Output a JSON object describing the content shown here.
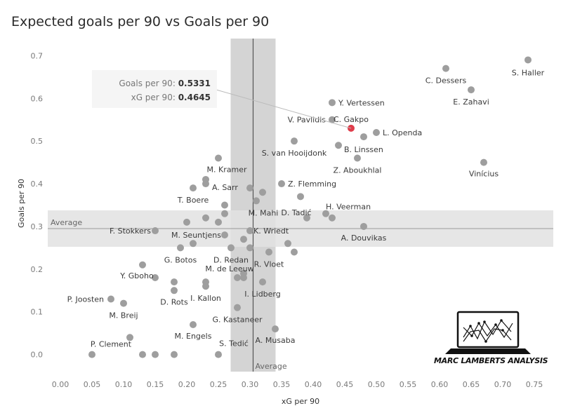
{
  "chart_data": {
    "type": "scatter",
    "title": "Expected goals per 90 vs Goals per 90",
    "xlabel": "xG per 90",
    "ylabel": "Goals per 90",
    "xlim": [
      -0.02,
      0.78
    ],
    "ylim": [
      -0.04,
      0.74
    ],
    "xticks": [
      "0.00",
      "0.05",
      "0.10",
      "0.15",
      "0.20",
      "0.25",
      "0.30",
      "0.35",
      "0.40",
      "0.45",
      "0.50",
      "0.55",
      "0.60",
      "0.65",
      "0.70",
      "0.75"
    ],
    "yticks": [
      "0.0",
      "0.1",
      "0.2",
      "0.3",
      "0.4",
      "0.5",
      "0.6",
      "0.7"
    ],
    "average_x": 0.305,
    "average_y": 0.295,
    "average_label": "Average",
    "highlight_color": "#e03c4a",
    "point_color": "#9e9e9e",
    "points": [
      {
        "x": 0.74,
        "y": 0.69,
        "label": "S. Haller"
      },
      {
        "x": 0.61,
        "y": 0.67,
        "label": "C. Dessers"
      },
      {
        "x": 0.65,
        "y": 0.62,
        "label": "E. Zahavi"
      },
      {
        "x": 0.43,
        "y": 0.59,
        "label": "Y. Vertessen"
      },
      {
        "x": 0.43,
        "y": 0.55,
        "label": "V. Pavlidis"
      },
      {
        "x": 0.46,
        "y": 0.53,
        "label": "C. Gakpo",
        "highlight": true
      },
      {
        "x": 0.5,
        "y": 0.52,
        "label": "L. Openda"
      },
      {
        "x": 0.48,
        "y": 0.51,
        "label": ""
      },
      {
        "x": 0.37,
        "y": 0.5,
        "label": "S. van Hooijdonk"
      },
      {
        "x": 0.44,
        "y": 0.49,
        "label": "B. Linssen"
      },
      {
        "x": 0.47,
        "y": 0.46,
        "label": "Z. Aboukhlal"
      },
      {
        "x": 0.67,
        "y": 0.45,
        "label": "Vinícius"
      },
      {
        "x": 0.25,
        "y": 0.46,
        "label": "M. Kramer"
      },
      {
        "x": 0.23,
        "y": 0.41,
        "label": ""
      },
      {
        "x": 0.23,
        "y": 0.4,
        "label": "A. Sarr"
      },
      {
        "x": 0.35,
        "y": 0.4,
        "label": "Z. Flemming"
      },
      {
        "x": 0.21,
        "y": 0.39,
        "label": "T. Boere"
      },
      {
        "x": 0.3,
        "y": 0.39,
        "label": ""
      },
      {
        "x": 0.32,
        "y": 0.38,
        "label": ""
      },
      {
        "x": 0.38,
        "y": 0.37,
        "label": ""
      },
      {
        "x": 0.31,
        "y": 0.36,
        "label": "M. Mahi"
      },
      {
        "x": 0.26,
        "y": 0.35,
        "label": ""
      },
      {
        "x": 0.26,
        "y": 0.33,
        "label": ""
      },
      {
        "x": 0.42,
        "y": 0.33,
        "label": "H. Veerman"
      },
      {
        "x": 0.39,
        "y": 0.32,
        "label": "D. Tadić"
      },
      {
        "x": 0.43,
        "y": 0.32,
        "label": ""
      },
      {
        "x": 0.23,
        "y": 0.32,
        "label": ""
      },
      {
        "x": 0.2,
        "y": 0.31,
        "label": ""
      },
      {
        "x": 0.25,
        "y": 0.31,
        "label": ""
      },
      {
        "x": 0.48,
        "y": 0.3,
        "label": "A. Douvikas"
      },
      {
        "x": 0.15,
        "y": 0.29,
        "label": "F. Stokkers"
      },
      {
        "x": 0.3,
        "y": 0.29,
        "label": "K. Wriedt"
      },
      {
        "x": 0.26,
        "y": 0.28,
        "label": "M. Seuntjens"
      },
      {
        "x": 0.29,
        "y": 0.27,
        "label": ""
      },
      {
        "x": 0.21,
        "y": 0.26,
        "label": ""
      },
      {
        "x": 0.36,
        "y": 0.26,
        "label": ""
      },
      {
        "x": 0.19,
        "y": 0.25,
        "label": "G. Botos"
      },
      {
        "x": 0.27,
        "y": 0.25,
        "label": "D. Redan"
      },
      {
        "x": 0.3,
        "y": 0.25,
        "label": ""
      },
      {
        "x": 0.33,
        "y": 0.24,
        "label": "R. Vloet"
      },
      {
        "x": 0.37,
        "y": 0.24,
        "label": ""
      },
      {
        "x": 0.13,
        "y": 0.21,
        "label": "Y. Gboho"
      },
      {
        "x": 0.29,
        "y": 0.19,
        "label": "M. de Leeuw"
      },
      {
        "x": 0.15,
        "y": 0.18,
        "label": ""
      },
      {
        "x": 0.28,
        "y": 0.18,
        "label": ""
      },
      {
        "x": 0.29,
        "y": 0.18,
        "label": ""
      },
      {
        "x": 0.18,
        "y": 0.17,
        "label": ""
      },
      {
        "x": 0.23,
        "y": 0.17,
        "label": ""
      },
      {
        "x": 0.32,
        "y": 0.17,
        "label": "I. Lidberg"
      },
      {
        "x": 0.23,
        "y": 0.16,
        "label": "I. Kallon"
      },
      {
        "x": 0.18,
        "y": 0.15,
        "label": "D. Rots"
      },
      {
        "x": 0.08,
        "y": 0.13,
        "label": "P. Joosten"
      },
      {
        "x": 0.1,
        "y": 0.12,
        "label": "M. Breij"
      },
      {
        "x": 0.28,
        "y": 0.11,
        "label": "G. Kastaneer"
      },
      {
        "x": 0.21,
        "y": 0.07,
        "label": "M. Engels"
      },
      {
        "x": 0.34,
        "y": 0.06,
        "label": "A. Musaba"
      },
      {
        "x": 0.11,
        "y": 0.04,
        "label": "P. Clement"
      },
      {
        "x": 0.05,
        "y": 0.0,
        "label": ""
      },
      {
        "x": 0.13,
        "y": 0.0,
        "label": ""
      },
      {
        "x": 0.15,
        "y": 0.0,
        "label": ""
      },
      {
        "x": 0.18,
        "y": 0.0,
        "label": ""
      },
      {
        "x": 0.25,
        "y": 0.0,
        "label": "S. Tedić"
      }
    ],
    "tooltip": {
      "goals_label": "Goals per 90:",
      "goals_value": "0.5331",
      "xg_label": "xG per 90:",
      "xg_value": "0.4645"
    }
  },
  "logo": {
    "text": "MARC LAMBERTS ANALYSIS",
    "icon": "laptop-chart-icon"
  }
}
